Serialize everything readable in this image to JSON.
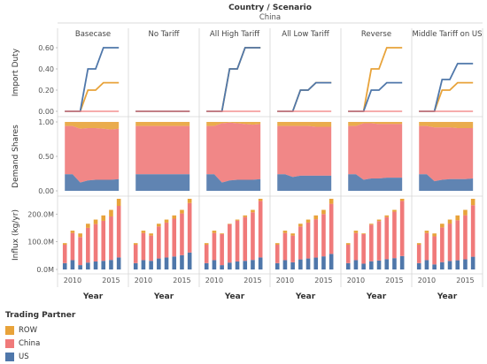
{
  "chart_data": {
    "type": "small-multiples",
    "title": "Country / Scenario",
    "country": "China",
    "scenarios": [
      "Basecase",
      "No Tariff",
      "All High Tariff",
      "All Low Tariff",
      "Reverse",
      "Middle Tariff on US"
    ],
    "years": [
      2009,
      2010,
      2011,
      2012,
      2013,
      2014,
      2015,
      2016
    ],
    "x_ticks": [
      "2010",
      "2015"
    ],
    "xlabel": "Year",
    "rows": [
      {
        "label": "Import Duty",
        "type": "line",
        "ylim": [
          0,
          0.65
        ],
        "ticks": [
          "0.00",
          "0.20",
          "0.40",
          "0.60"
        ],
        "tick_values": [
          0,
          0.2,
          0.4,
          0.6
        ]
      },
      {
        "label": "Demand Shares",
        "type": "area",
        "ylim": [
          0,
          1
        ],
        "ticks": [
          "0.00",
          "0.50",
          "1.00"
        ],
        "tick_values": [
          0,
          0.5,
          1.0
        ]
      },
      {
        "label": "Influx (kg/yr)",
        "type": "stacked-bar",
        "ylim": [
          0,
          255
        ],
        "ticks": [
          "0.0M",
          "100.0M",
          "200.0M"
        ],
        "tick_values": [
          0,
          100,
          200
        ]
      }
    ],
    "series_colors": {
      "ROW": "#e8a33a",
      "China": "#f07a7a",
      "US": "#4f77aa"
    },
    "import_duty": [
      {
        "ROW": [
          0,
          0,
          0,
          0.2,
          0.2,
          0.27,
          0.27,
          0.27
        ],
        "US": [
          0,
          0,
          0,
          0.4,
          0.4,
          0.6,
          0.6,
          0.6
        ]
      },
      {
        "ROW": [
          0,
          0,
          0,
          0,
          0,
          0,
          0,
          0
        ],
        "US": [
          0,
          0,
          0,
          0,
          0,
          0,
          0,
          0
        ]
      },
      {
        "ROW": [
          0,
          0,
          0,
          0.4,
          0.4,
          0.6,
          0.6,
          0.6
        ],
        "US": [
          0,
          0,
          0,
          0.4,
          0.4,
          0.6,
          0.6,
          0.6
        ]
      },
      {
        "ROW": [
          0,
          0,
          0,
          0.2,
          0.2,
          0.27,
          0.27,
          0.27
        ],
        "US": [
          0,
          0,
          0,
          0.2,
          0.2,
          0.27,
          0.27,
          0.27
        ]
      },
      {
        "ROW": [
          0,
          0,
          0,
          0.4,
          0.4,
          0.6,
          0.6,
          0.6
        ],
        "US": [
          0,
          0,
          0,
          0.2,
          0.2,
          0.27,
          0.27,
          0.27
        ]
      },
      {
        "ROW": [
          0,
          0,
          0,
          0.2,
          0.2,
          0.27,
          0.27,
          0.27
        ],
        "US": [
          0,
          0,
          0,
          0.3,
          0.3,
          0.45,
          0.45,
          0.45
        ]
      }
    ],
    "demand_shares": [
      {
        "US": [
          0.24,
          0.24,
          0.12,
          0.15,
          0.16,
          0.16,
          0.16,
          0.17
        ],
        "China": [
          0.7,
          0.7,
          0.78,
          0.76,
          0.75,
          0.74,
          0.73,
          0.73
        ]
      },
      {
        "US": [
          0.24,
          0.24,
          0.24,
          0.24,
          0.24,
          0.24,
          0.24,
          0.24
        ],
        "China": [
          0.7,
          0.7,
          0.7,
          0.7,
          0.7,
          0.7,
          0.7,
          0.7
        ]
      },
      {
        "US": [
          0.24,
          0.24,
          0.12,
          0.15,
          0.16,
          0.16,
          0.16,
          0.17
        ],
        "China": [
          0.7,
          0.7,
          0.86,
          0.84,
          0.82,
          0.81,
          0.8,
          0.8
        ]
      },
      {
        "US": [
          0.24,
          0.24,
          0.2,
          0.22,
          0.22,
          0.22,
          0.22,
          0.22
        ],
        "China": [
          0.7,
          0.7,
          0.74,
          0.72,
          0.72,
          0.71,
          0.71,
          0.71
        ]
      },
      {
        "US": [
          0.24,
          0.24,
          0.16,
          0.18,
          0.18,
          0.19,
          0.19,
          0.19
        ],
        "China": [
          0.7,
          0.7,
          0.82,
          0.8,
          0.79,
          0.78,
          0.78,
          0.78
        ]
      },
      {
        "US": [
          0.24,
          0.24,
          0.14,
          0.16,
          0.17,
          0.17,
          0.17,
          0.18
        ],
        "China": [
          0.7,
          0.7,
          0.78,
          0.76,
          0.75,
          0.74,
          0.74,
          0.73
        ]
      }
    ],
    "influx_totals": [
      [
        95,
        140,
        130,
        165,
        180,
        195,
        215,
        255
      ],
      [
        95,
        140,
        130,
        165,
        180,
        195,
        215,
        255
      ],
      [
        95,
        140,
        130,
        165,
        180,
        195,
        215,
        255
      ],
      [
        95,
        140,
        130,
        165,
        180,
        195,
        215,
        255
      ],
      [
        95,
        140,
        130,
        165,
        180,
        195,
        215,
        255
      ],
      [
        95,
        140,
        130,
        165,
        180,
        195,
        215,
        255
      ]
    ],
    "legend": {
      "title": "Trading Partner",
      "items": [
        {
          "name": "ROW",
          "color": "#e8a33a"
        },
        {
          "name": "China",
          "color": "#f07a7a"
        },
        {
          "name": "US",
          "color": "#4f77aa"
        }
      ]
    }
  }
}
